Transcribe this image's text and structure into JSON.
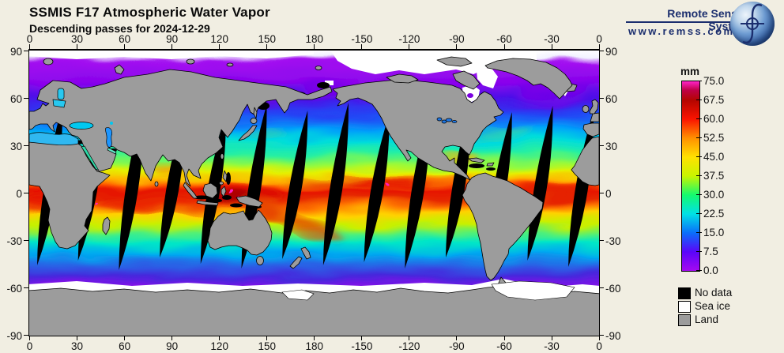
{
  "header": {
    "title": "SSMIS F17 Atmospheric Water Vapor",
    "subtitle": "Descending passes for 2024-12-29"
  },
  "logo": {
    "name": "Remote Sensing Systems",
    "url": "www.remss.com",
    "color": "#1B2E6E"
  },
  "map": {
    "lon_ticks": [
      "0",
      "30",
      "60",
      "90",
      "120",
      "150",
      "180",
      "-150",
      "-120",
      "-90",
      "-60",
      "-30",
      "0"
    ],
    "lat_ticks": [
      "90",
      "60",
      "30",
      "0",
      "-30",
      "-60",
      "-90"
    ],
    "lat_range": [
      -90,
      90
    ],
    "lon_range": [
      0,
      360
    ]
  },
  "colorbar": {
    "units_label": "mm",
    "min": 0,
    "max": 75,
    "tick_step": 7.5,
    "tick_labels": [
      "75.0",
      "67.5",
      "60.0",
      "52.5",
      "45.0",
      "37.5",
      "30.0",
      "22.5",
      "15.0",
      "7.5",
      "0.0"
    ],
    "stops": [
      {
        "value": 0,
        "color": "#A50AF0"
      },
      {
        "value": 7.5,
        "color": "#5A05FA"
      },
      {
        "value": 15,
        "color": "#0A6EFA"
      },
      {
        "value": 22.5,
        "color": "#00E1E6"
      },
      {
        "value": 30,
        "color": "#14FA6E"
      },
      {
        "value": 37.5,
        "color": "#C8F500"
      },
      {
        "value": 45,
        "color": "#FFE100"
      },
      {
        "value": 52.5,
        "color": "#FF9100"
      },
      {
        "value": 60,
        "color": "#FA1400"
      },
      {
        "value": 67.5,
        "color": "#B40500"
      },
      {
        "value": 71.5,
        "color": "#BE0046"
      },
      {
        "value": 75,
        "color": "#FF23C8"
      }
    ]
  },
  "legend": {
    "items": [
      {
        "label": "No data",
        "color": "#000000"
      },
      {
        "label": "Sea ice",
        "color": "#FFFFFF"
      },
      {
        "label": "Land",
        "color": "#9C9C9C"
      }
    ]
  },
  "colors": {
    "background": "#F1EEE2",
    "land": "#9C9C9C",
    "coastline": "#000000",
    "no_data": "#000000",
    "sea_ice": "#FFFFFF",
    "title_text": "#0A0A0A",
    "logo_navy": "#1B2E6E"
  }
}
